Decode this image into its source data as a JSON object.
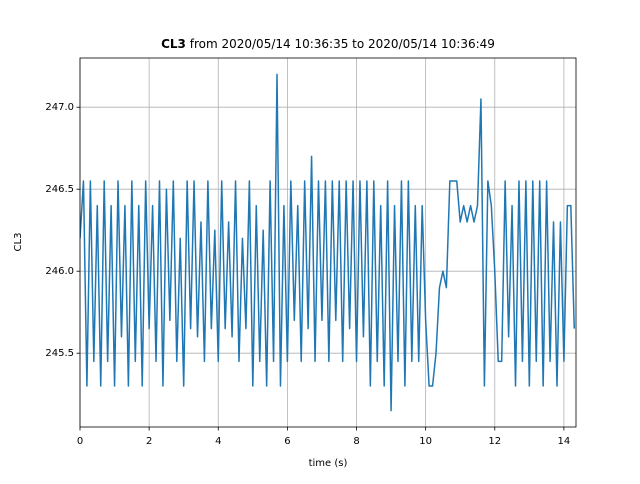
{
  "chart_data": {
    "type": "line",
    "title_bold": "CL3",
    "title": "from 2020/05/14 10:36:35 to 2020/05/14 10:36:49",
    "xlabel": "time (s)",
    "ylabel": "CL3",
    "color": "#1f77b4",
    "grid": true,
    "xlim": [
      0,
      14.35
    ],
    "xticks": [
      0,
      2,
      4,
      6,
      8,
      10,
      12,
      14
    ],
    "ylim": [
      245.05,
      247.3
    ],
    "yticks": [
      245.5,
      {
        "value": 246,
        "label": "246.0"
      },
      246.5,
      {
        "value": 247,
        "label": "247.0"
      }
    ],
    "x": [
      0,
      0.1,
      0.2,
      0.3,
      0.4,
      0.5,
      0.6,
      0.7,
      0.8,
      0.9,
      1,
      1.1,
      1.2,
      1.3,
      1.4,
      1.5,
      1.6,
      1.7,
      1.8,
      1.9,
      2,
      2.1,
      2.2,
      2.3,
      2.4,
      2.5,
      2.6,
      2.7,
      2.8,
      2.9,
      3,
      3.1,
      3.2,
      3.3,
      3.4,
      3.5,
      3.6,
      3.7,
      3.8,
      3.9,
      4,
      4.1,
      4.2,
      4.3,
      4.4,
      4.5,
      4.6,
      4.7,
      4.8,
      4.9,
      5,
      5.1,
      5.2,
      5.3,
      5.4,
      5.5,
      5.6,
      5.7,
      5.8,
      5.9,
      6,
      6.1,
      6.2,
      6.3,
      6.4,
      6.5,
      6.6,
      6.7,
      6.8,
      6.9,
      7,
      7.1,
      7.2,
      7.3,
      7.4,
      7.5,
      7.6,
      7.7,
      7.8,
      7.9,
      8,
      8.1,
      8.2,
      8.3,
      8.4,
      8.5,
      8.6,
      8.7,
      8.8,
      8.9,
      9,
      9.1,
      9.2,
      9.3,
      9.4,
      9.5,
      9.6,
      9.7,
      9.8,
      9.9,
      10,
      10.1,
      10.2,
      10.3,
      10.4,
      10.5,
      10.6,
      10.7,
      10.8,
      10.9,
      11,
      11.1,
      11.2,
      11.3,
      11.4,
      11.5,
      11.6,
      11.7,
      11.8,
      11.9,
      12,
      12.1,
      12.2,
      12.3,
      12.4,
      12.5,
      12.6,
      12.7,
      12.8,
      12.9,
      13,
      13.1,
      13.2,
      13.3,
      13.4,
      13.5,
      13.6,
      13.7,
      13.8,
      13.9,
      14,
      14.1,
      14.2,
      14.3
    ],
    "values": [
      246.2,
      246.55,
      245.3,
      246.55,
      245.45,
      246.4,
      245.3,
      246.55,
      245.45,
      246.4,
      245.3,
      246.55,
      245.6,
      246.4,
      245.3,
      246.55,
      245.45,
      246.4,
      245.3,
      246.55,
      245.65,
      246.4,
      245.45,
      246.55,
      245.3,
      246.5,
      245.7,
      246.55,
      245.45,
      246.2,
      245.3,
      246.55,
      245.65,
      246.55,
      245.6,
      246.3,
      245.45,
      246.55,
      245.65,
      246.25,
      245.45,
      246.55,
      245.65,
      246.3,
      245.6,
      246.55,
      245.45,
      246.2,
      245.65,
      246.55,
      245.3,
      246.4,
      245.45,
      246.25,
      245.3,
      246.55,
      245.45,
      247.2,
      245.3,
      246.4,
      245.45,
      246.55,
      245.7,
      246.4,
      245.45,
      246.55,
      245.65,
      246.7,
      245.45,
      246.55,
      245.7,
      246.55,
      245.45,
      246.55,
      245.7,
      246.55,
      245.45,
      246.55,
      245.65,
      246.55,
      245.45,
      246.55,
      245.6,
      246.55,
      245.3,
      246.55,
      245.45,
      246.4,
      245.3,
      246.55,
      245.15,
      246.4,
      245.45,
      246.55,
      245.3,
      246.55,
      245.45,
      246.4,
      245.45,
      246.4,
      245.7,
      245.3,
      245.3,
      245.5,
      245.9,
      246.0,
      245.9,
      246.55,
      246.55,
      246.55,
      246.3,
      246.4,
      246.3,
      246.4,
      246.3,
      246.4,
      247.05,
      245.3,
      246.55,
      246.4,
      246.0,
      245.45,
      245.45,
      246.55,
      245.6,
      246.4,
      245.3,
      246.55,
      245.45,
      246.55,
      245.3,
      246.55,
      245.45,
      246.55,
      245.3,
      246.55,
      245.45,
      246.3,
      245.3,
      246.3,
      245.45,
      246.4,
      246.4,
      245.65
    ]
  }
}
